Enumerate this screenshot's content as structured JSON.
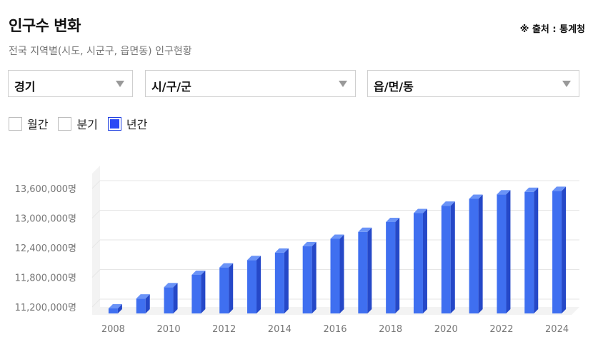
{
  "header": {
    "title": "인구수 변화",
    "source": "※ 출처 : 통계청",
    "subtitle": "전국 지역별(시도, 시군구, 읍면동) 인구현황"
  },
  "filters": {
    "region": "경기",
    "district": "시/구/군",
    "town": "읍/면/동"
  },
  "period": [
    {
      "label": "월간",
      "checked": false
    },
    {
      "label": "분기",
      "checked": false
    },
    {
      "label": "년간",
      "checked": true
    }
  ],
  "colors": {
    "bar_front": "#3f6ff0",
    "bar_side": "#2548c8",
    "bar_top": "#6a93f7",
    "grid": "#e6e6e6",
    "wall": "#f3f3f3"
  },
  "chart_data": {
    "type": "bar",
    "categories": [
      "2008",
      "2009",
      "2010",
      "2011",
      "2012",
      "2013",
      "2014",
      "2015",
      "2016",
      "2017",
      "2018",
      "2019",
      "2020",
      "2021",
      "2022",
      "2023",
      "2024"
    ],
    "values": [
      11200000,
      11400000,
      11630000,
      11880000,
      12030000,
      12180000,
      12330000,
      12460000,
      12610000,
      12750000,
      12950000,
      13130000,
      13280000,
      13420000,
      13510000,
      13560000,
      13580000
    ],
    "ylim": [
      11200000,
      13600000
    ],
    "yticks": [
      "11,200,000명",
      "11,800,000명",
      "12,400,000명",
      "13,000,000명",
      "13,600,000명"
    ],
    "ytick_values": [
      11200000,
      11800000,
      12400000,
      13000000,
      13600000
    ],
    "xticks": [
      "2008",
      "2010",
      "2012",
      "2014",
      "2016",
      "2018",
      "2020",
      "2022",
      "2024"
    ],
    "xlabel": "",
    "ylabel": "",
    "grid": true
  }
}
